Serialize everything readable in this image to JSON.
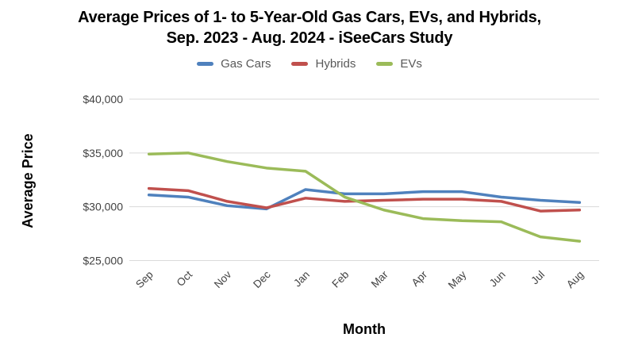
{
  "title": {
    "line1": "Average Prices of 1- to 5-Year-Old Gas Cars, EVs, and Hybrids,",
    "line2": "Sep. 2023 - Aug. 2024 - iSeeCars Study"
  },
  "chart_data": {
    "type": "line",
    "title": "Average Prices of 1- to 5-Year-Old Gas Cars, EVs, and Hybrids, Sep. 2023 - Aug. 2024 - iSeeCars Study",
    "xlabel": "Month",
    "ylabel": "Average Price",
    "categories": [
      "Sep",
      "Oct",
      "Nov",
      "Dec",
      "Jan",
      "Feb",
      "Mar",
      "Apr",
      "May",
      "Jun",
      "Jul",
      "Aug"
    ],
    "series": [
      {
        "name": "Gas Cars",
        "color": "#4f81bd",
        "values": [
          31100,
          30900,
          30100,
          29800,
          31600,
          31200,
          31200,
          31400,
          31400,
          30900,
          30600,
          30400
        ]
      },
      {
        "name": "Hybrids",
        "color": "#c0504d",
        "values": [
          31700,
          31500,
          30500,
          29900,
          30800,
          30500,
          30600,
          30700,
          30700,
          30500,
          29600,
          29700
        ]
      },
      {
        "name": "EVs",
        "color": "#9bbb59",
        "values": [
          34900,
          35000,
          34200,
          33600,
          33300,
          30900,
          29700,
          28900,
          28700,
          28600,
          27200,
          26800
        ]
      }
    ],
    "y_ticks": [
      {
        "label": "$40,000",
        "value": 40000
      },
      {
        "label": "$35,000",
        "value": 35000
      },
      {
        "label": "$30,000",
        "value": 30000
      },
      {
        "label": "$25,000",
        "value": 25000
      }
    ],
    "ylim": [
      25000,
      40000
    ],
    "grid": "horizontal",
    "legend_position": "top"
  },
  "colors": {
    "gridline": "#dadada",
    "tick_label": "#424242",
    "legend_label": "#595959"
  }
}
